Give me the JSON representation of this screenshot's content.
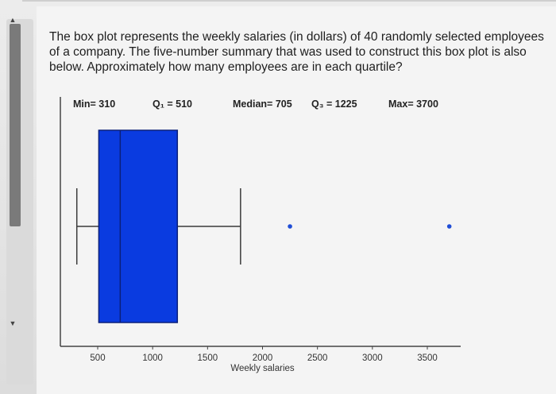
{
  "question": "The box plot represents the weekly salaries (in dollars) of 40 randomly selected employees of a company. The five-number summary that was used to construct this box plot is also below. Approximately how many employees are in each quartile?",
  "summary": {
    "min": "Min= 310",
    "q1": "Q₁ = 510",
    "median": "Median= 705",
    "q3": "Q₃ = 1225",
    "max": "Max= 3700"
  },
  "chart_data": {
    "type": "boxplot",
    "orientation": "horizontal",
    "xlabel": "Weekly salaries",
    "xticks": [
      500,
      1000,
      1500,
      2000,
      2500,
      3000,
      3500
    ],
    "xlim": [
      310,
      3800
    ],
    "box": {
      "whisker_low": 310,
      "q1": 510,
      "median": 705,
      "q3": 1225,
      "whisker_high": 1800
    },
    "outliers": [
      2250,
      3700
    ],
    "colors": {
      "box": "#0a3be0",
      "box_edge": "#0b1f7a",
      "whisker": "#3a3a3a",
      "axis": "#444444",
      "outlier": "#1f4dd6"
    }
  }
}
